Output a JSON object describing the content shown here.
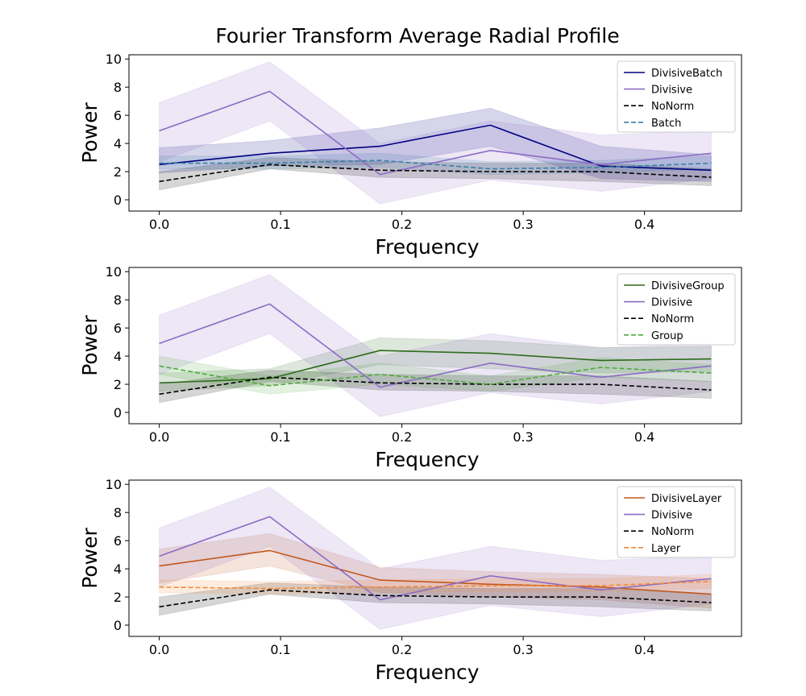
{
  "title": "Fourier Transform Average Radial Profile",
  "chart_data": [
    {
      "type": "line",
      "xlabel": "Frequency",
      "ylabel": "Power",
      "xlim": [
        -0.025,
        0.48
      ],
      "ylim": [
        -0.8,
        10.3
      ],
      "xticks": [
        "0.0",
        "0.1",
        "0.2",
        "0.3",
        "0.4"
      ],
      "yticks": [
        "0",
        "2",
        "4",
        "6",
        "8",
        "10"
      ],
      "legend_position": "top-right",
      "x": [
        0.0,
        0.091,
        0.182,
        0.273,
        0.364,
        0.455
      ],
      "series": [
        {
          "name": "DivisiveBatch",
          "color": "#000080",
          "dash": "solid",
          "values": [
            2.5,
            3.3,
            3.8,
            5.3,
            2.4,
            2.1
          ],
          "band_low": [
            1.9,
            2.4,
            2.5,
            3.8,
            1.5,
            1.3
          ],
          "band_high": [
            3.7,
            4.2,
            5.1,
            6.5,
            3.8,
            3.2
          ]
        },
        {
          "name": "Divisive",
          "color": "#8c6bc4",
          "dash": "solid",
          "values": [
            4.9,
            7.7,
            1.8,
            3.5,
            2.5,
            3.3
          ],
          "band_low": [
            2.7,
            5.6,
            -0.3,
            1.4,
            0.6,
            1.5
          ],
          "band_high": [
            6.9,
            9.8,
            4.0,
            5.6,
            4.6,
            4.9
          ]
        },
        {
          "name": "NoNorm",
          "color": "#000000",
          "dash": "dashed",
          "values": [
            1.3,
            2.5,
            2.1,
            2.0,
            2.0,
            1.6
          ],
          "band_low": [
            0.7,
            2.2,
            1.6,
            1.5,
            1.3,
            1.0
          ],
          "band_high": [
            2.0,
            3.0,
            2.7,
            2.6,
            2.6,
            2.2
          ]
        },
        {
          "name": "Batch",
          "color": "#3a7fa8",
          "dash": "dashed",
          "values": [
            2.6,
            2.6,
            2.8,
            2.2,
            2.3,
            2.6
          ],
          "band_low": [
            2.2,
            2.2,
            2.3,
            1.8,
            1.9,
            2.2
          ],
          "band_high": [
            3.1,
            3.1,
            3.3,
            2.7,
            2.8,
            3.1
          ]
        }
      ]
    },
    {
      "type": "line",
      "xlabel": "Frequency",
      "ylabel": "Power",
      "xlim": [
        -0.025,
        0.48
      ],
      "ylim": [
        -0.8,
        10.3
      ],
      "xticks": [
        "0.0",
        "0.1",
        "0.2",
        "0.3",
        "0.4"
      ],
      "yticks": [
        "0",
        "2",
        "4",
        "6",
        "8",
        "10"
      ],
      "legend_position": "top-right",
      "x": [
        0.0,
        0.091,
        0.182,
        0.273,
        0.364,
        0.455
      ],
      "series": [
        {
          "name": "DivisiveGroup",
          "color": "#2e6b1c",
          "dash": "solid",
          "values": [
            2.1,
            2.4,
            4.4,
            4.2,
            3.7,
            3.8
          ],
          "band_low": [
            1.5,
            1.9,
            3.4,
            3.1,
            2.8,
            2.9
          ],
          "band_high": [
            2.8,
            3.1,
            5.3,
            5.1,
            4.6,
            4.7
          ]
        },
        {
          "name": "Divisive",
          "color": "#8c6bc4",
          "dash": "solid",
          "values": [
            4.9,
            7.7,
            1.8,
            3.5,
            2.5,
            3.3
          ],
          "band_low": [
            2.7,
            5.6,
            -0.3,
            1.4,
            0.6,
            1.5
          ],
          "band_high": [
            6.9,
            9.8,
            4.0,
            5.6,
            4.6,
            4.9
          ]
        },
        {
          "name": "NoNorm",
          "color": "#000000",
          "dash": "dashed",
          "values": [
            1.3,
            2.5,
            2.1,
            2.0,
            2.0,
            1.6
          ],
          "band_low": [
            0.7,
            2.2,
            1.6,
            1.5,
            1.3,
            1.0
          ],
          "band_high": [
            2.0,
            3.0,
            2.7,
            2.6,
            2.6,
            2.2
          ]
        },
        {
          "name": "Group",
          "color": "#4faa3e",
          "dash": "dashed",
          "values": [
            3.3,
            1.9,
            2.7,
            2.0,
            3.2,
            2.8
          ],
          "band_low": [
            2.7,
            1.3,
            2.0,
            1.5,
            2.5,
            2.2
          ],
          "band_high": [
            4.0,
            2.6,
            3.5,
            2.6,
            3.9,
            3.4
          ]
        }
      ]
    },
    {
      "type": "line",
      "xlabel": "Frequency",
      "ylabel": "Power",
      "xlim": [
        -0.025,
        0.48
      ],
      "ylim": [
        -0.8,
        10.3
      ],
      "xticks": [
        "0.0",
        "0.1",
        "0.2",
        "0.3",
        "0.4"
      ],
      "yticks": [
        "0",
        "2",
        "4",
        "6",
        "8",
        "10"
      ],
      "legend_position": "top-right",
      "x": [
        0.0,
        0.091,
        0.182,
        0.273,
        0.364,
        0.455
      ],
      "series": [
        {
          "name": "DivisiveLayer",
          "color": "#c0581e",
          "dash": "solid",
          "values": [
            4.2,
            5.3,
            3.2,
            2.9,
            2.7,
            2.2
          ],
          "band_low": [
            3.0,
            4.2,
            2.3,
            2.0,
            1.8,
            1.2
          ],
          "band_high": [
            5.4,
            6.5,
            4.1,
            3.8,
            3.6,
            3.3
          ]
        },
        {
          "name": "Divisive",
          "color": "#8c6bc4",
          "dash": "solid",
          "values": [
            4.9,
            7.7,
            1.8,
            3.5,
            2.5,
            3.3
          ],
          "band_low": [
            2.7,
            5.6,
            -0.3,
            1.4,
            0.6,
            1.5
          ],
          "band_high": [
            6.9,
            9.8,
            4.0,
            5.6,
            4.6,
            4.9
          ]
        },
        {
          "name": "NoNorm",
          "color": "#000000",
          "dash": "dashed",
          "values": [
            1.3,
            2.5,
            2.1,
            2.0,
            2.0,
            1.6
          ],
          "band_low": [
            0.7,
            2.2,
            1.6,
            1.5,
            1.3,
            1.0
          ],
          "band_high": [
            2.0,
            3.0,
            2.7,
            2.6,
            2.6,
            2.2
          ]
        },
        {
          "name": "Layer",
          "color": "#f08a3a",
          "dash": "dashed",
          "values": [
            2.7,
            2.6,
            2.7,
            2.8,
            2.8,
            3.1
          ],
          "band_low": [
            2.3,
            2.2,
            2.3,
            2.4,
            2.4,
            2.6
          ],
          "band_high": [
            3.2,
            3.1,
            3.2,
            3.3,
            3.3,
            3.6
          ]
        }
      ]
    }
  ]
}
